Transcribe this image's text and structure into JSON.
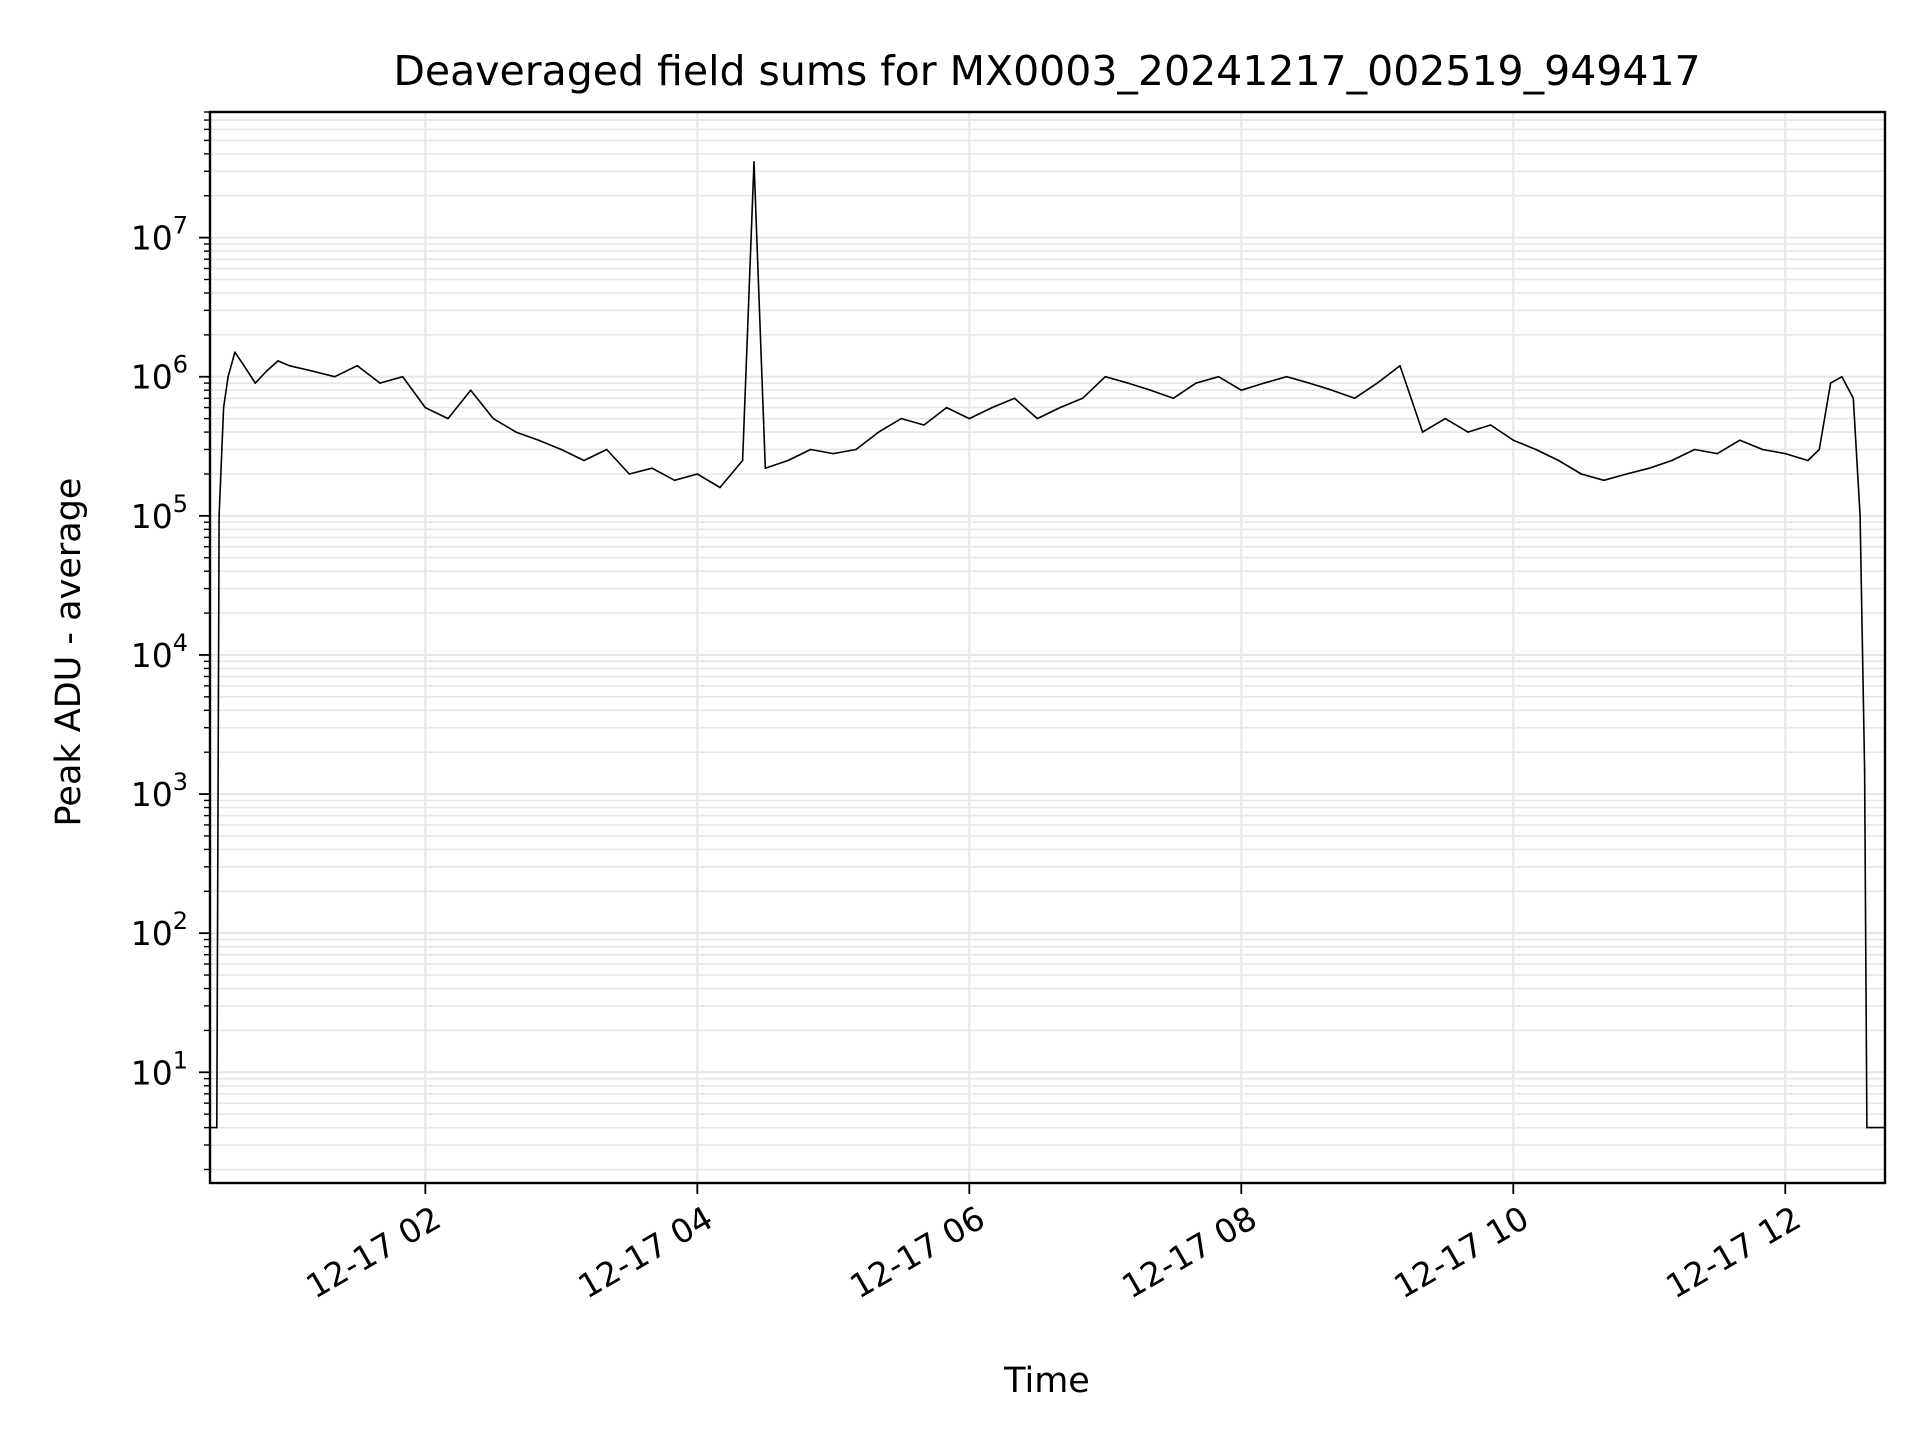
{
  "chart_data": {
    "type": "line",
    "title": "Deaveraged field sums for MX0003_20241217_002519_949417",
    "xlabel": "Time",
    "ylabel": "Peak ADU - average",
    "x_axis_type": "datetime",
    "x_range": [
      "2024-12-17 00:25",
      "2024-12-17 12:44"
    ],
    "x_ticks": [
      "12-17 02",
      "12-17 04",
      "12-17 06",
      "12-17 08",
      "12-17 10",
      "12-17 12"
    ],
    "y_scale": "log",
    "y_range": [
      1.6,
      80000000
    ],
    "y_ticks": [
      {
        "base": "10",
        "exp": "1"
      },
      {
        "base": "10",
        "exp": "2"
      },
      {
        "base": "10",
        "exp": "3"
      },
      {
        "base": "10",
        "exp": "4"
      },
      {
        "base": "10",
        "exp": "5"
      },
      {
        "base": "10",
        "exp": "6"
      },
      {
        "base": "10",
        "exp": "7"
      }
    ],
    "grid": true,
    "line_color": "#000000",
    "grid_color": "#e6e6e6",
    "series": [
      {
        "x": [
          "00:25",
          "00:28",
          "00:29",
          "00:31",
          "00:33",
          "00:36",
          "00:40",
          "00:45",
          "00:50",
          "00:55",
          "01:00",
          "01:10",
          "01:20",
          "01:30",
          "01:40",
          "01:50",
          "02:00",
          "02:10",
          "02:20",
          "02:30",
          "02:40",
          "02:50",
          "03:00",
          "03:10",
          "03:20",
          "03:30",
          "03:40",
          "03:50",
          "04:00",
          "04:10",
          "04:20",
          "04:25",
          "04:30",
          "04:40",
          "04:50",
          "05:00",
          "05:10",
          "05:20",
          "05:30",
          "05:40",
          "05:50",
          "06:00",
          "06:10",
          "06:20",
          "06:30",
          "06:40",
          "06:50",
          "07:00",
          "07:10",
          "07:20",
          "07:30",
          "07:40",
          "07:50",
          "08:00",
          "08:10",
          "08:20",
          "08:30",
          "08:40",
          "08:50",
          "09:00",
          "09:10",
          "09:20",
          "09:30",
          "09:40",
          "09:50",
          "10:00",
          "10:10",
          "10:20",
          "10:30",
          "10:40",
          "10:50",
          "11:00",
          "11:10",
          "11:20",
          "11:30",
          "11:40",
          "11:50",
          "12:00",
          "12:10",
          "12:15",
          "12:20",
          "12:25",
          "12:30",
          "12:33",
          "12:35",
          "12:36",
          "12:38",
          "12:44"
        ],
        "values": [
          4,
          4,
          100000,
          600000,
          1000000,
          1500000,
          1200000,
          900000,
          1100000,
          1300000,
          1200000,
          1100000,
          1000000,
          1200000,
          900000,
          1000000,
          600000,
          500000,
          800000,
          500000,
          400000,
          350000,
          300000,
          250000,
          300000,
          200000,
          220000,
          180000,
          200000,
          160000,
          250000,
          35000000,
          220000,
          250000,
          300000,
          280000,
          300000,
          400000,
          500000,
          450000,
          600000,
          500000,
          600000,
          700000,
          500000,
          600000,
          700000,
          1000000,
          900000,
          800000,
          700000,
          900000,
          1000000,
          800000,
          900000,
          1000000,
          900000,
          800000,
          700000,
          900000,
          1200000,
          400000,
          500000,
          400000,
          450000,
          350000,
          300000,
          250000,
          200000,
          180000,
          200000,
          220000,
          250000,
          300000,
          280000,
          350000,
          300000,
          280000,
          250000,
          300000,
          900000,
          1000000,
          700000,
          100000,
          1500,
          4,
          4,
          4
        ]
      }
    ]
  }
}
